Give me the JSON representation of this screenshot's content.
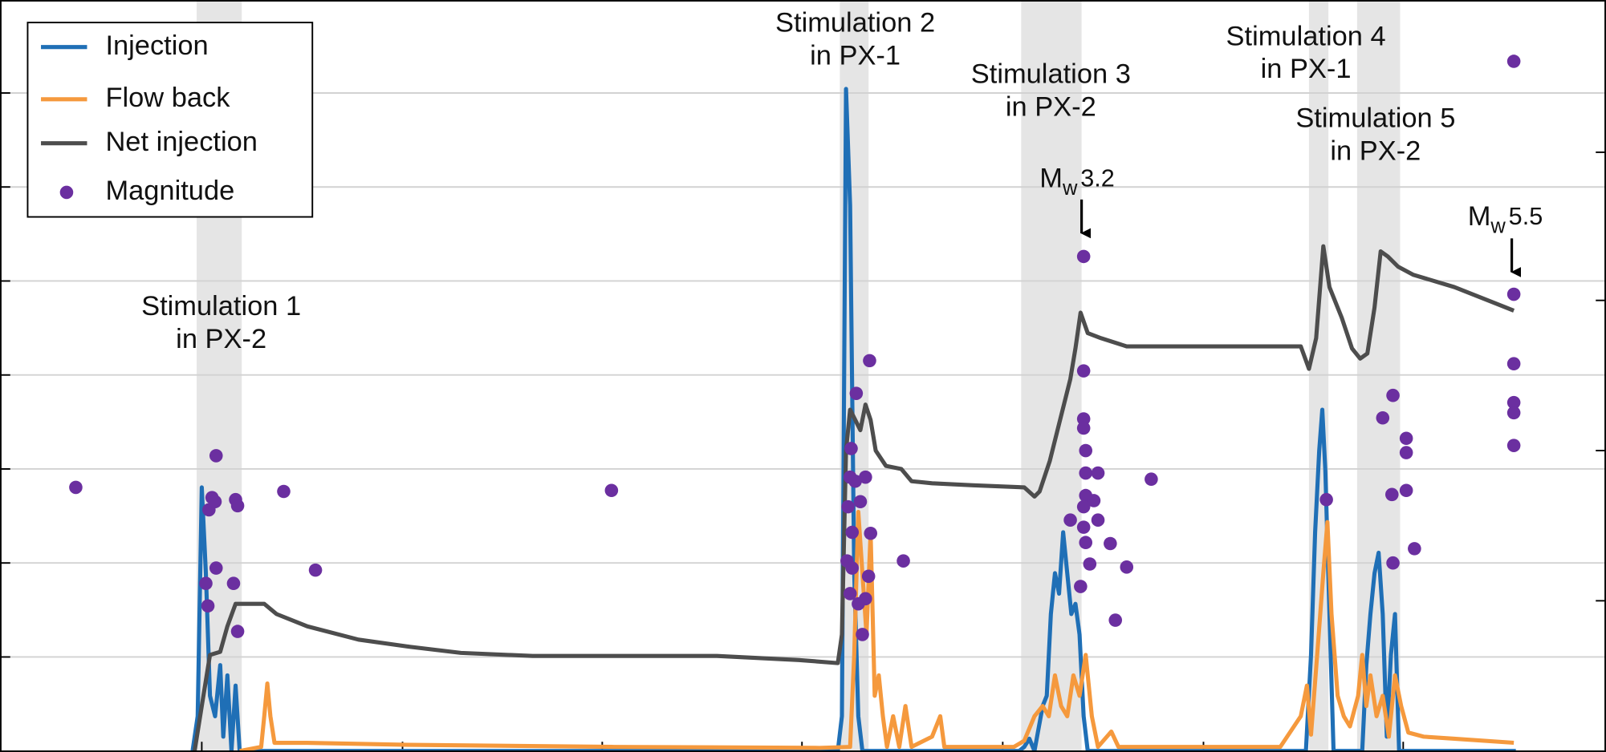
{
  "chart_data": {
    "type": "line",
    "xlim": [
      0,
      1568
    ],
    "xticks": [
      197,
      393,
      588,
      783,
      979,
      1175,
      1370
    ],
    "ylim": [
      0,
      735
    ],
    "yticks": [
      92,
      184,
      276,
      368,
      460,
      552,
      644
    ],
    "y2lim": [
      0,
      735
    ],
    "y2ticks": [
      147,
      294,
      441,
      586
    ],
    "grid": true,
    "legend": "upper left",
    "shaded_spans": [
      [
        192,
        236
      ],
      [
        820,
        848
      ],
      [
        997,
        1056
      ],
      [
        1278,
        1297
      ],
      [
        1325,
        1367
      ]
    ],
    "series": [
      {
        "name": "Injection",
        "type": "line",
        "color": "#1f6fb6",
        "x": [
          188,
          193,
          197,
          201,
          205,
          210,
          215,
          218,
          222,
          226,
          230,
          234,
          818,
          822,
          826,
          830,
          834,
          838,
          842,
          995,
          1000,
          1005,
          1010,
          1018,
          1022,
          1026,
          1030,
          1034,
          1038,
          1042,
          1046,
          1050,
          1054,
          1058,
          1062,
          1275,
          1280,
          1284,
          1288,
          1291,
          1294,
          1298,
          1302,
          1330,
          1334,
          1338,
          1342,
          1346,
          1350,
          1354,
          1358,
          1362,
          1366,
          1480
        ],
        "values": [
          0,
          34,
          258,
          174,
          54,
          34,
          84,
          14,
          74,
          0,
          64,
          0,
          0,
          34,
          648,
          534,
          174,
          34,
          0,
          0,
          4,
          12,
          0,
          44,
          54,
          134,
          174,
          154,
          214,
          174,
          134,
          144,
          114,
          34,
          0,
          0,
          94,
          214,
          294,
          334,
          274,
          134,
          0,
          0,
          84,
          134,
          174,
          194,
          134,
          14,
          94,
          134,
          0,
          0
        ]
      },
      {
        "name": "Flow back",
        "type": "line",
        "color": "#f5993d",
        "x": [
          234,
          255,
          258,
          261,
          264,
          268,
          300,
          400,
          600,
          800,
          830,
          834,
          838,
          842,
          846,
          850,
          854,
          858,
          862,
          866,
          872,
          878,
          884,
          890,
          910,
          918,
          922,
          990,
          1000,
          1010,
          1018,
          1024,
          1030,
          1036,
          1042,
          1048,
          1054,
          1060,
          1066,
          1072,
          1085,
          1092,
          1250,
          1270,
          1276,
          1280,
          1286,
          1292,
          1296,
          1300,
          1306,
          1312,
          1318,
          1326,
          1330,
          1334,
          1338,
          1344,
          1350,
          1356,
          1362,
          1368,
          1375,
          1390,
          1420,
          1478
        ],
        "values": [
          0,
          4,
          34,
          66,
          34,
          8,
          8,
          6,
          4,
          3,
          4,
          94,
          234,
          174,
          114,
          214,
          54,
          74,
          34,
          4,
          34,
          4,
          44,
          4,
          14,
          34,
          4,
          4,
          10,
          34,
          44,
          34,
          74,
          44,
          34,
          74,
          54,
          94,
          34,
          4,
          19,
          4,
          4,
          34,
          64,
          16,
          94,
          174,
          224,
          134,
          54,
          34,
          24,
          54,
          94,
          44,
          74,
          34,
          54,
          14,
          74,
          44,
          18,
          14,
          12,
          8
        ]
      },
      {
        "name": "Net injection",
        "type": "line",
        "color": "#4d4d4d",
        "x": [
          190,
          197,
          205,
          215,
          222,
          230,
          258,
          270,
          300,
          350,
          400,
          450,
          520,
          600,
          700,
          780,
          818,
          822,
          826,
          830,
          835,
          840,
          845,
          850,
          855,
          865,
          880,
          890,
          910,
          950,
          1000,
          1010,
          1015,
          1025,
          1035,
          1045,
          1050,
          1055,
          1062,
          1075,
          1100,
          1200,
          1270,
          1278,
          1285,
          1292,
          1298,
          1310,
          1320,
          1328,
          1335,
          1342,
          1348,
          1355,
          1365,
          1380,
          1420,
          1478
        ],
        "values": [
          0,
          44,
          94,
          97,
          122,
          144,
          144,
          134,
          122,
          109,
          102,
          96,
          93,
          93,
          93,
          89,
          86,
          114,
          294,
          334,
          324,
          314,
          339,
          324,
          294,
          279,
          276,
          264,
          262,
          260,
          258,
          249,
          254,
          284,
          324,
          364,
          394,
          429,
          409,
          404,
          396,
          396,
          396,
          374,
          404,
          494,
          454,
          424,
          394,
          384,
          389,
          434,
          489,
          484,
          474,
          466,
          454,
          431
        ]
      },
      {
        "name": "Magnitude",
        "type": "scatter",
        "color": "#6b2fa0",
        "x": [
          74,
          211,
          207,
          204,
          210,
          230,
          232,
          201,
          203,
          211,
          228,
          232,
          277,
          308,
          597,
          849,
          836,
          831,
          830,
          835,
          845,
          828,
          840,
          832,
          850,
          827,
          832,
          848,
          830,
          845,
          838,
          842,
          882,
          1058,
          1058,
          1058,
          1058,
          1060,
          1060,
          1072,
          1060,
          1068,
          1045,
          1058,
          1058,
          1072,
          1060,
          1084,
          1064,
          1055,
          1100,
          1089,
          1124,
          1295,
          1360,
          1350,
          1373,
          1373,
          1359,
          1373,
          1360,
          1381,
          1478,
          1478,
          1478,
          1478,
          1478,
          1478
        ],
        "values": [
          258,
          289,
          248,
          236,
          244,
          246,
          240,
          164,
          142,
          179,
          164,
          117,
          254,
          177,
          255,
          382,
          350,
          296,
          268,
          264,
          268,
          239,
          244,
          214,
          213,
          186,
          179,
          171,
          154,
          149,
          144,
          114,
          186,
          484,
          372,
          325,
          316,
          294,
          272,
          272,
          250,
          245,
          226,
          239,
          219,
          226,
          204,
          203,
          183,
          161,
          180,
          128,
          266,
          246,
          348,
          326,
          306,
          292,
          251,
          255,
          184,
          198,
          675,
          447,
          379,
          341,
          331,
          299
        ]
      }
    ],
    "annotations": [
      {
        "text": [
          "Stimulation 1",
          "in PX-2"
        ]
      },
      {
        "text": [
          "Stimulation 2",
          "in PX-1"
        ]
      },
      {
        "text": [
          "Stimulation 3",
          "in PX-2"
        ]
      },
      {
        "text": [
          "Stimulation 4",
          "in PX-1"
        ]
      },
      {
        "text": [
          "Stimulation 5",
          "in PX-2"
        ]
      }
    ],
    "magnitude_labels": [
      {
        "symbol": "M",
        "subscript": "w",
        "value": 3.2
      },
      {
        "symbol": "M",
        "subscript": "w",
        "value": 5.5
      }
    ]
  }
}
